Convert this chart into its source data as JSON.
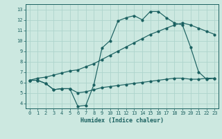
{
  "xlabel": "Humidex (Indice chaleur)",
  "xlim": [
    -0.5,
    23.5
  ],
  "ylim": [
    3.5,
    13.5
  ],
  "xticks": [
    0,
    1,
    2,
    3,
    4,
    5,
    6,
    7,
    8,
    9,
    10,
    11,
    12,
    13,
    14,
    15,
    16,
    17,
    18,
    19,
    20,
    21,
    22,
    23
  ],
  "yticks": [
    4,
    5,
    6,
    7,
    8,
    9,
    10,
    11,
    12,
    13
  ],
  "bg_color": "#cce8e0",
  "grid_color": "#aed4cc",
  "line_color": "#1a6060",
  "line1_x": [
    0,
    1,
    2,
    3,
    4,
    5,
    6,
    7,
    8,
    9,
    10,
    11,
    12,
    13,
    14,
    15,
    16,
    17,
    18,
    19,
    20,
    21,
    22,
    23
  ],
  "line1_y": [
    6.2,
    6.2,
    5.9,
    5.3,
    5.4,
    5.4,
    3.7,
    3.8,
    5.8,
    9.3,
    10.0,
    11.9,
    12.2,
    12.4,
    12.0,
    12.8,
    12.8,
    12.2,
    11.7,
    11.5,
    9.4,
    7.0,
    6.3,
    6.4
  ],
  "line2_x": [
    0,
    1,
    2,
    3,
    4,
    5,
    6,
    7,
    8,
    9,
    10,
    11,
    12,
    13,
    14,
    15,
    16,
    17,
    18,
    19,
    20,
    21,
    22,
    23
  ],
  "line2_y": [
    6.2,
    6.2,
    5.9,
    5.3,
    5.4,
    5.4,
    5.0,
    5.1,
    5.3,
    5.5,
    5.6,
    5.7,
    5.8,
    5.9,
    6.0,
    6.1,
    6.2,
    6.3,
    6.4,
    6.4,
    6.3,
    6.3,
    6.4,
    6.4
  ],
  "line3_x": [
    0,
    1,
    2,
    3,
    4,
    5,
    6,
    7,
    8,
    9,
    10,
    11,
    12,
    13,
    14,
    15,
    16,
    17,
    18,
    19,
    20,
    21,
    22,
    23
  ],
  "line3_y": [
    6.2,
    6.4,
    6.5,
    6.7,
    6.9,
    7.1,
    7.2,
    7.5,
    7.8,
    8.2,
    8.6,
    9.0,
    9.4,
    9.8,
    10.2,
    10.6,
    10.9,
    11.2,
    11.5,
    11.7,
    11.5,
    11.2,
    10.9,
    10.6
  ]
}
